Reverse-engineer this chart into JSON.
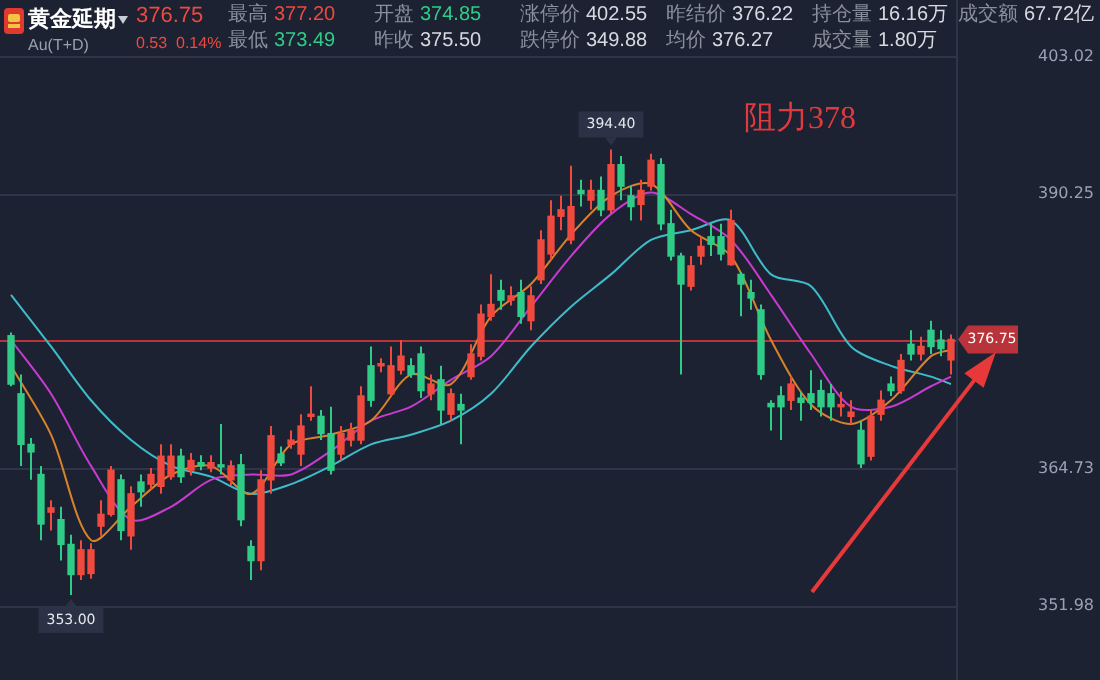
{
  "chart_data": {
    "type": "candlestick",
    "title": "黄金延期",
    "subtitle": "Au(T+D)",
    "categories": [
      null,
      null,
      null,
      null,
      null,
      null,
      null,
      null,
      null,
      null,
      null,
      null,
      null,
      null,
      null,
      null,
      null,
      null,
      null,
      null,
      null,
      null,
      null,
      null,
      null,
      null,
      null,
      null,
      null,
      null,
      null,
      null,
      null,
      null,
      null,
      null,
      null,
      null,
      null,
      null,
      null,
      null,
      null,
      null,
      null,
      null,
      null,
      null,
      null,
      null,
      null,
      null,
      null,
      null,
      null,
      null,
      null,
      null,
      null,
      null,
      null,
      null,
      null,
      null,
      null,
      null,
      null,
      null,
      null,
      null,
      null,
      null,
      null,
      null,
      null,
      null,
      null,
      null,
      null,
      null,
      null,
      null,
      null,
      null,
      null,
      null,
      null,
      null,
      null,
      null,
      null,
      null,
      null,
      null,
      null
    ],
    "ohlc": [
      [
        377.1,
        377.4,
        372.4,
        372.6
      ],
      [
        371.7,
        373.5,
        365.0,
        367.0
      ],
      [
        367.0,
        367.6,
        363.7,
        366.3
      ],
      [
        364.2,
        365.0,
        358.1,
        359.6
      ],
      [
        360.7,
        361.8,
        359.0,
        361.1
      ],
      [
        360.0,
        361.2,
        356.2,
        357.7
      ],
      [
        357.7,
        358.6,
        353.0,
        354.9
      ],
      [
        354.9,
        358.1,
        354.4,
        357.2
      ],
      [
        355.0,
        357.8,
        354.5,
        357.2
      ],
      [
        359.4,
        361.8,
        358.5,
        360.5
      ],
      [
        360.5,
        365.0,
        360.3,
        364.6
      ],
      [
        363.7,
        364.2,
        358.1,
        359.0
      ],
      [
        358.5,
        363.1,
        357.2,
        362.4
      ],
      [
        363.5,
        364.2,
        361.2,
        362.6
      ],
      [
        363.3,
        364.8,
        362.8,
        364.2
      ],
      [
        363.1,
        367.0,
        362.4,
        365.9
      ],
      [
        364.0,
        367.0,
        363.7,
        365.9
      ],
      [
        365.9,
        366.6,
        363.4,
        364.0
      ],
      [
        364.6,
        366.2,
        364.1,
        365.5
      ],
      [
        365.3,
        366.0,
        364.6,
        365.0
      ],
      [
        364.8,
        366.0,
        364.4,
        365.3
      ],
      [
        365.1,
        368.9,
        364.2,
        364.9
      ],
      [
        363.7,
        365.5,
        363.2,
        365.0
      ],
      [
        365.1,
        366.1,
        359.4,
        360.0
      ],
      [
        357.5,
        358.1,
        354.4,
        356.2
      ],
      [
        356.2,
        364.6,
        355.3,
        363.7
      ],
      [
        363.7,
        368.7,
        362.4,
        367.8
      ],
      [
        366.1,
        366.8,
        365.0,
        365.3
      ],
      [
        367.0,
        368.3,
        366.6,
        367.4
      ],
      [
        366.1,
        369.8,
        365.0,
        368.7
      ],
      [
        369.6,
        372.4,
        369.2,
        369.8
      ],
      [
        369.6,
        370.2,
        367.4,
        368.0
      ],
      [
        368.0,
        370.5,
        364.2,
        364.6
      ],
      [
        366.1,
        368.7,
        365.5,
        368.0
      ],
      [
        367.4,
        369.0,
        366.8,
        368.3
      ],
      [
        367.4,
        372.4,
        367.0,
        371.5
      ],
      [
        374.3,
        376.1,
        370.5,
        371.1
      ],
      [
        374.3,
        375.0,
        373.7,
        374.5
      ],
      [
        371.7,
        376.1,
        371.5,
        374.3
      ],
      [
        373.9,
        376.7,
        373.5,
        375.2
      ],
      [
        374.3,
        375.0,
        373.2,
        373.5
      ],
      [
        375.4,
        376.1,
        371.3,
        372.0
      ],
      [
        371.7,
        373.5,
        371.1,
        372.6
      ],
      [
        373.0,
        374.3,
        368.9,
        370.2
      ],
      [
        369.8,
        372.2,
        369.2,
        371.7
      ],
      [
        370.7,
        371.7,
        367.0,
        370.2
      ],
      [
        373.3,
        376.3,
        373.0,
        375.4
      ],
      [
        375.2,
        380.0,
        374.8,
        379.1
      ],
      [
        378.9,
        382.8,
        378.5,
        380.0
      ],
      [
        381.3,
        382.3,
        379.5,
        380.4
      ],
      [
        380.4,
        381.7,
        379.9,
        380.8
      ],
      [
        381.1,
        382.3,
        378.2,
        378.9
      ],
      [
        378.5,
        381.7,
        377.6,
        380.8
      ],
      [
        382.3,
        386.9,
        381.9,
        386.0
      ],
      [
        384.7,
        389.7,
        384.1,
        388.2
      ],
      [
        388.2,
        390.1,
        386.9,
        388.8
      ],
      [
        386.0,
        392.9,
        385.6,
        389.1
      ],
      [
        390.6,
        391.6,
        389.1,
        390.3
      ],
      [
        389.7,
        391.6,
        388.8,
        390.6
      ],
      [
        390.6,
        391.9,
        388.2,
        388.8
      ],
      [
        388.8,
        394.4,
        388.4,
        393.0
      ],
      [
        393.0,
        393.8,
        389.7,
        391.0
      ],
      [
        390.1,
        391.0,
        387.8,
        389.1
      ],
      [
        389.3,
        391.6,
        387.8,
        390.6
      ],
      [
        391.0,
        394.0,
        390.6,
        393.4
      ],
      [
        393.0,
        393.6,
        386.9,
        387.5
      ],
      [
        387.5,
        388.8,
        384.1,
        384.5
      ],
      [
        384.5,
        384.8,
        373.5,
        381.9
      ],
      [
        381.7,
        384.5,
        381.3,
        383.6
      ],
      [
        384.5,
        386.3,
        383.7,
        385.4
      ],
      [
        386.3,
        387.5,
        384.5,
        385.6
      ],
      [
        386.3,
        387.5,
        384.1,
        384.7
      ],
      [
        383.7,
        388.8,
        383.6,
        387.8
      ],
      [
        382.8,
        383.0,
        378.9,
        381.9
      ],
      [
        381.1,
        382.3,
        379.5,
        380.6
      ],
      [
        379.5,
        380.0,
        373.0,
        373.5
      ],
      [
        370.8,
        371.1,
        368.3,
        370.5
      ],
      [
        371.5,
        372.4,
        367.4,
        370.5
      ],
      [
        371.1,
        373.3,
        370.2,
        372.6
      ],
      [
        371.3,
        371.9,
        369.2,
        370.9
      ],
      [
        371.7,
        373.9,
        370.2,
        370.9
      ],
      [
        372.0,
        373.0,
        369.6,
        370.5
      ],
      [
        371.7,
        372.6,
        369.2,
        370.5
      ],
      [
        370.5,
        371.9,
        369.6,
        370.7
      ],
      [
        369.6,
        371.1,
        368.9,
        370.0
      ],
      [
        368.3,
        369.2,
        364.8,
        365.2
      ],
      [
        365.9,
        370.2,
        365.5,
        369.6
      ],
      [
        369.8,
        372.0,
        369.2,
        371.1
      ],
      [
        372.6,
        373.3,
        371.5,
        372.0
      ],
      [
        372.0,
        375.4,
        371.7,
        374.8
      ],
      [
        376.3,
        377.6,
        374.8,
        375.4
      ],
      [
        375.4,
        377.0,
        374.8,
        376.1
      ],
      [
        377.6,
        378.5,
        375.4,
        376.1
      ],
      [
        376.7,
        377.6,
        375.2,
        375.9
      ],
      [
        374.85,
        377.2,
        373.49,
        376.75
      ]
    ],
    "series": [
      {
        "type": "line",
        "color": "#d9822b",
        "values": [
          374.3,
          null,
          null,
          null,
          367.9,
          null,
          null,
          null,
          358.1,
          null,
          null,
          null,
          361.2,
          null,
          null,
          null,
          364.2,
          null,
          null,
          null,
          365.0,
          null,
          null,
          null,
          362.4,
          null,
          null,
          null,
          367.0,
          null,
          null,
          null,
          367.9,
          null,
          null,
          null,
          369.2,
          null,
          null,
          null,
          373.5,
          null,
          null,
          null,
          372.6,
          null,
          null,
          null,
          378.9,
          null,
          null,
          null,
          381.9,
          null,
          null,
          null,
          386.5,
          null,
          null,
          null,
          390.1,
          null,
          null,
          null,
          391.2,
          null,
          null,
          null,
          386.9,
          null,
          null,
          null,
          384.5,
          null,
          null,
          null,
          376.7,
          null,
          null,
          null,
          370.7,
          null,
          null,
          null,
          368.9,
          null,
          null,
          null,
          371.1,
          null,
          null,
          null,
          375.2,
          null,
          375.8
        ]
      },
      {
        "type": "line",
        "color": "#c83bd1",
        "values": [
          376.7,
          null,
          null,
          null,
          371.7,
          null,
          null,
          null,
          365.0,
          null,
          null,
          null,
          360.0,
          null,
          null,
          null,
          361.2,
          null,
          null,
          null,
          363.7,
          null,
          null,
          null,
          364.2,
          null,
          null,
          null,
          364.2,
          null,
          null,
          null,
          366.4,
          null,
          null,
          null,
          369.2,
          null,
          null,
          null,
          370.5,
          null,
          null,
          null,
          373.0,
          null,
          null,
          null,
          375.2,
          null,
          null,
          null,
          379.8,
          null,
          null,
          null,
          384.5,
          null,
          null,
          null,
          388.4,
          null,
          null,
          null,
          390.4,
          null,
          null,
          null,
          388.4,
          null,
          null,
          null,
          386.0,
          null,
          null,
          null,
          380.9,
          null,
          null,
          null,
          375.4,
          null,
          null,
          null,
          370.5,
          null,
          null,
          null,
          370.5,
          null,
          null,
          null,
          372.4,
          null,
          373.3
        ]
      },
      {
        "type": "line",
        "color": "#3fbcc9",
        "values": [
          380.9,
          null,
          null,
          null,
          376.1,
          null,
          null,
          null,
          371.1,
          null,
          null,
          null,
          367.4,
          null,
          null,
          null,
          365.0,
          null,
          null,
          null,
          364.0,
          null,
          null,
          null,
          362.4,
          null,
          null,
          null,
          363.3,
          null,
          null,
          null,
          365.0,
          null,
          null,
          null,
          367.0,
          null,
          null,
          null,
          367.9,
          null,
          null,
          null,
          369.2,
          null,
          null,
          null,
          371.7,
          null,
          null,
          null,
          376.1,
          null,
          null,
          null,
          379.8,
          null,
          null,
          null,
          382.8,
          null,
          null,
          null,
          386.0,
          null,
          null,
          null,
          386.9,
          null,
          null,
          null,
          387.8,
          null,
          null,
          null,
          382.8,
          null,
          null,
          null,
          381.7,
          null,
          null,
          null,
          376.1,
          null,
          null,
          null,
          374.3,
          null,
          null,
          null,
          373.3,
          null,
          372.6
        ]
      }
    ],
    "ylim": [
      345.1,
      408.3
    ],
    "yticks": [
      351.98,
      364.73,
      390.25,
      403.02
    ],
    "grid": "y",
    "ref_lines": [
      {
        "axis": "y",
        "value": 376.75,
        "label": "376.75",
        "color": "#b8343a"
      }
    ],
    "annotations": [
      "376.75",
      "0.53",
      "0.14%",
      "最高 377.20",
      "开盘 374.85",
      "涨停价 402.55",
      "昨结价 376.22",
      "持仓量 16.16万",
      "成交额 67.72亿",
      "最低 373.49",
      "昨收 375.50",
      "跌停价 349.88",
      "均价 376.27",
      "成交量 1.80万",
      "阻力378",
      "394.40",
      "353.00"
    ]
  }
}
